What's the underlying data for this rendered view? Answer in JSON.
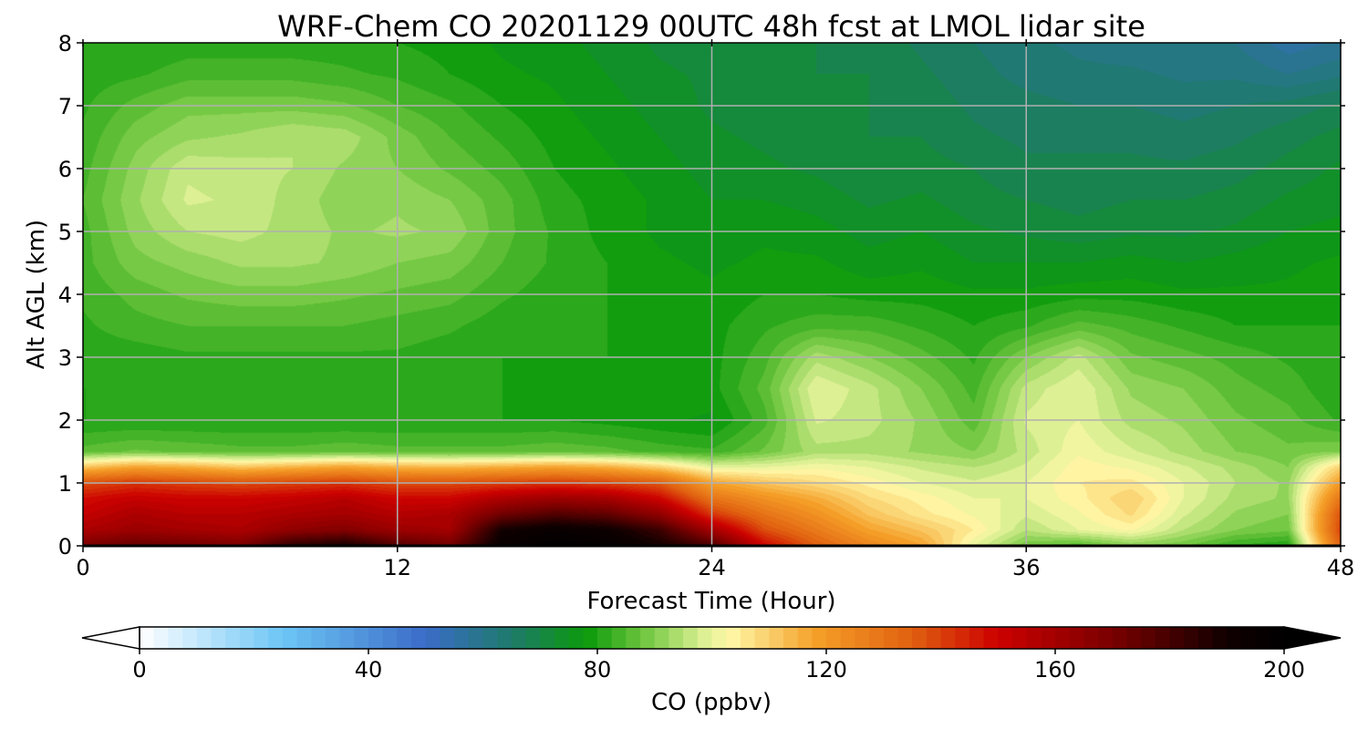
{
  "chart_data": {
    "type": "heatmap",
    "title": "WRF-Chem CO 20201129 00UTC 48h fcst at LMOL lidar site",
    "xlabel": "Forecast Time (Hour)",
    "ylabel": "Alt AGL (km)",
    "xlim": [
      0,
      48
    ],
    "ylim": [
      0,
      8
    ],
    "x_ticks": [
      "0",
      "12",
      "24",
      "36",
      "48"
    ],
    "y_ticks": [
      "0",
      "1",
      "2",
      "3",
      "4",
      "5",
      "6",
      "7",
      "8"
    ],
    "grid": true,
    "colorbar": {
      "label": "CO  (ppbv)",
      "range": [
        0,
        200
      ],
      "ticks": [
        "0",
        "40",
        "80",
        "120",
        "160",
        "200"
      ],
      "extend": "both",
      "colormap_stops": [
        {
          "value": 0,
          "color": "#ffffff"
        },
        {
          "value": 25,
          "color": "#6cc5f5"
        },
        {
          "value": 50,
          "color": "#3a6cc8"
        },
        {
          "value": 65,
          "color": "#1e7a6a"
        },
        {
          "value": 78,
          "color": "#0b9a0b"
        },
        {
          "value": 88,
          "color": "#6ec63e"
        },
        {
          "value": 98,
          "color": "#d8ee90"
        },
        {
          "value": 103,
          "color": "#fff8a8"
        },
        {
          "value": 118,
          "color": "#f5a028"
        },
        {
          "value": 135,
          "color": "#e06010"
        },
        {
          "value": 150,
          "color": "#cc0000"
        },
        {
          "value": 170,
          "color": "#7a0000"
        },
        {
          "value": 190,
          "color": "#100000"
        },
        {
          "value": 200,
          "color": "#000000"
        }
      ]
    },
    "x": [
      0,
      2,
      4,
      6,
      8,
      10,
      12,
      14,
      16,
      18,
      20,
      22,
      24,
      26,
      28,
      30,
      32,
      34,
      36,
      38,
      40,
      42,
      44,
      46,
      48
    ],
    "y": [
      0,
      0.25,
      0.5,
      0.75,
      1.0,
      1.25,
      1.5,
      2.0,
      2.5,
      3.0,
      3.5,
      4.0,
      4.5,
      5.0,
      5.5,
      6.0,
      6.5,
      7.0,
      7.5,
      8.0
    ],
    "z": [
      [
        170,
        175,
        172,
        170,
        185,
        190,
        178,
        172,
        195,
        200,
        198,
        190,
        180,
        150,
        135,
        125,
        118,
        100,
        88,
        85,
        90,
        88,
        82,
        80,
        135
      ],
      [
        158,
        162,
        160,
        158,
        165,
        168,
        162,
        160,
        190,
        195,
        192,
        182,
        160,
        138,
        128,
        118,
        112,
        105,
        95,
        100,
        103,
        95,
        90,
        88,
        140
      ],
      [
        152,
        158,
        155,
        155,
        158,
        160,
        156,
        158,
        172,
        178,
        175,
        165,
        142,
        130,
        122,
        112,
        106,
        102,
        98,
        102,
        108,
        98,
        92,
        90,
        138
      ],
      [
        148,
        152,
        150,
        150,
        152,
        155,
        150,
        150,
        158,
        162,
        160,
        150,
        130,
        122,
        116,
        108,
        104,
        100,
        100,
        104,
        110,
        100,
        94,
        92,
        130
      ],
      [
        138,
        142,
        140,
        138,
        140,
        142,
        138,
        138,
        140,
        142,
        140,
        136,
        118,
        112,
        108,
        104,
        100,
        98,
        100,
        105,
        106,
        100,
        95,
        92,
        120
      ],
      [
        112,
        118,
        116,
        112,
        115,
        118,
        115,
        114,
        116,
        118,
        116,
        110,
        100,
        100,
        102,
        100,
        97,
        95,
        98,
        104,
        102,
        98,
        94,
        90,
        110
      ],
      [
        86,
        88,
        87,
        86,
        86,
        87,
        86,
        86,
        86,
        87,
        86,
        84,
        83,
        88,
        94,
        94,
        92,
        90,
        96,
        102,
        98,
        94,
        90,
        88,
        90
      ],
      [
        80,
        80,
        80,
        80,
        80,
        80,
        80,
        80,
        80,
        80,
        79,
        78,
        77,
        84,
        98,
        96,
        92,
        86,
        98,
        100,
        94,
        92,
        88,
        86,
        82
      ],
      [
        80,
        80,
        80,
        80,
        80,
        80,
        80,
        80,
        80,
        79,
        79,
        79,
        79,
        86,
        100,
        96,
        90,
        84,
        96,
        100,
        92,
        90,
        86,
        84,
        80
      ],
      [
        81,
        81,
        82,
        82,
        82,
        82,
        82,
        81,
        80,
        80,
        80,
        79,
        79,
        84,
        94,
        90,
        86,
        82,
        90,
        96,
        88,
        86,
        84,
        82,
        80
      ],
      [
        82,
        84,
        85,
        85,
        85,
        85,
        84,
        83,
        81,
        80,
        80,
        79,
        79,
        82,
        84,
        84,
        82,
        80,
        82,
        86,
        84,
        82,
        80,
        80,
        80
      ],
      [
        83,
        86,
        88,
        89,
        89,
        88,
        87,
        86,
        83,
        81,
        80,
        79,
        78,
        80,
        80,
        79,
        79,
        78,
        78,
        79,
        79,
        78,
        78,
        78,
        79
      ],
      [
        84,
        89,
        91,
        93,
        93,
        92,
        90,
        89,
        85,
        82,
        80,
        78,
        77,
        78,
        78,
        76,
        77,
        75,
        75,
        75,
        76,
        75,
        76,
        77,
        78
      ],
      [
        84,
        91,
        95,
        96,
        94,
        92,
        93,
        92,
        86,
        82,
        79,
        77,
        76,
        77,
        76,
        74,
        75,
        73,
        72,
        71,
        72,
        72,
        73,
        75,
        76
      ],
      [
        85,
        92,
        98,
        97,
        94,
        91,
        92,
        90,
        86,
        81,
        79,
        77,
        75,
        75,
        74,
        72,
        73,
        71,
        70,
        69,
        70,
        70,
        71,
        73,
        74
      ],
      [
        84,
        91,
        97,
        96,
        95,
        92,
        90,
        87,
        84,
        80,
        78,
        76,
        74,
        73,
        72,
        70,
        71,
        70,
        68,
        68,
        68,
        68,
        69,
        71,
        73
      ],
      [
        83,
        89,
        92,
        93,
        95,
        94,
        89,
        85,
        82,
        79,
        77,
        75,
        73,
        72,
        71,
        70,
        70,
        68,
        67,
        67,
        67,
        66,
        67,
        69,
        71
      ],
      [
        82,
        86,
        89,
        89,
        89,
        88,
        85,
        83,
        80,
        78,
        76,
        74,
        72,
        71,
        71,
        70,
        69,
        67,
        66,
        65,
        65,
        64,
        65,
        66,
        68
      ],
      [
        81,
        82,
        84,
        84,
        84,
        83,
        82,
        80,
        78,
        77,
        75,
        73,
        72,
        71,
        70,
        70,
        68,
        66,
        64,
        63,
        63,
        62,
        62,
        60,
        62
      ],
      [
        80,
        80,
        81,
        81,
        81,
        81,
        80,
        79,
        77,
        76,
        74,
        72,
        71,
        70,
        70,
        69,
        67,
        65,
        63,
        62,
        61,
        60,
        60,
        56,
        58
      ]
    ]
  }
}
